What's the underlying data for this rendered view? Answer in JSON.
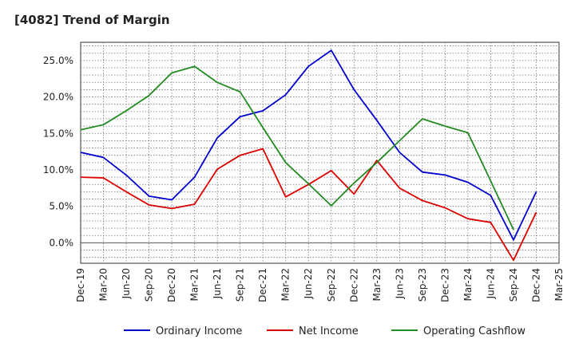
{
  "title": "[4082]  Trend of Margin",
  "chart_data": {
    "type": "line",
    "title": "[4082]  Trend of Margin",
    "categories": [
      "Dec-19",
      "Mar-20",
      "Jun-20",
      "Sep-20",
      "Dec-20",
      "Mar-21",
      "Jun-21",
      "Sep-21",
      "Dec-21",
      "Mar-22",
      "Jun-22",
      "Sep-22",
      "Dec-22",
      "Mar-23",
      "Jun-23",
      "Sep-23",
      "Dec-23",
      "Mar-24",
      "Jun-24",
      "Sep-24",
      "Dec-24",
      "Mar-25"
    ],
    "y_tick_labels": [
      "0.0%",
      "5.0%",
      "10.0%",
      "15.0%",
      "20.0%",
      "25.0%"
    ],
    "y_ticks": [
      0,
      5,
      10,
      15,
      20,
      25
    ],
    "ylim": [
      -2.8,
      27.5
    ],
    "grid": true,
    "legend_position": "bottom",
    "series": [
      {
        "name": "Ordinary Income",
        "color": "#0000cc",
        "values": [
          12.4,
          11.7,
          9.3,
          6.4,
          5.9,
          9.0,
          14.4,
          17.3,
          18.1,
          20.3,
          24.2,
          26.4,
          21.0,
          16.8,
          12.4,
          9.7,
          9.3,
          8.3,
          6.5,
          0.4,
          7.0,
          null
        ]
      },
      {
        "name": "Net Income",
        "color": "#dd0000",
        "values": [
          9.0,
          8.9,
          7.0,
          5.2,
          4.7,
          5.3,
          10.1,
          12.0,
          12.9,
          6.3,
          8.0,
          9.9,
          6.7,
          11.3,
          7.5,
          5.8,
          4.8,
          3.3,
          2.8,
          -2.4,
          4.2,
          null
        ]
      },
      {
        "name": "Operating Cashflow",
        "color": "#228b22",
        "values": [
          15.5,
          16.2,
          18.1,
          20.2,
          23.3,
          24.2,
          22.0,
          20.7,
          15.8,
          11.0,
          8.1,
          5.1,
          8.2,
          11.0,
          14.0,
          17.0,
          16.0,
          15.1,
          8.5,
          1.8,
          null,
          null
        ]
      }
    ]
  }
}
